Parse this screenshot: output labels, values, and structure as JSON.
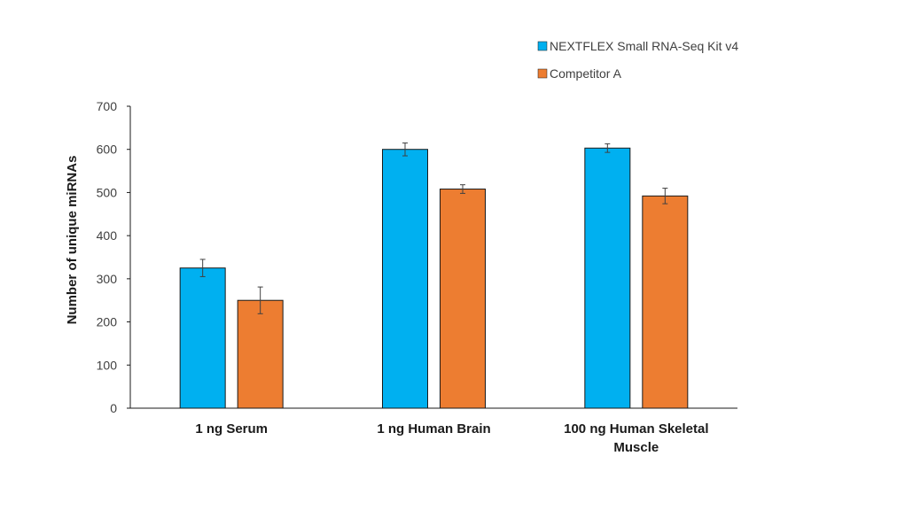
{
  "chart_data": {
    "type": "bar",
    "categories": [
      [
        "1 ng Serum"
      ],
      [
        "1 ng Human Brain"
      ],
      [
        "100 ng Human Skeletal",
        "Muscle"
      ]
    ],
    "series": [
      {
        "name": "NEXTFLEX Small RNA-Seq Kit v4",
        "color": "#00B0F0",
        "values": [
          325,
          600,
          603
        ],
        "errors": [
          20,
          15,
          10
        ]
      },
      {
        "name": "Competitor A",
        "color": "#ED7D31",
        "values": [
          250,
          508,
          492
        ],
        "errors": [
          31,
          10,
          18
        ]
      }
    ],
    "ylabel": "Number of unique miRNAs",
    "xlabel": "",
    "ylim": [
      0,
      700
    ],
    "yticks": [
      0,
      100,
      200,
      300,
      400,
      500,
      600,
      700
    ],
    "grid": false,
    "legend_position": "top-right"
  }
}
